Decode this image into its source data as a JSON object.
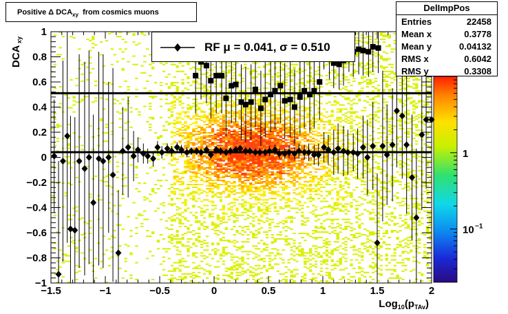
{
  "title": "Positive Δ DCA",
  "title_sub": "xy",
  "title_suffix": "from cosmics muons",
  "stats": {
    "name": "DelImpPos",
    "rows": [
      {
        "key": "Entries",
        "value": "22458"
      },
      {
        "key": "Mean x",
        "value": "0.3778"
      },
      {
        "key": "Mean y",
        "value": "0.04132"
      },
      {
        "key": "RMS x",
        "value": "0.6042"
      },
      {
        "key": "RMS y",
        "value": "0.3308"
      }
    ]
  },
  "legend": {
    "text": "RF μ =  0.041, σ =   0.510"
  },
  "colors": {
    "profile": "#000000",
    "fit_lines": "#000000"
  },
  "chart_data": {
    "type": "scatter",
    "xlabel": "Log",
    "xlabel_sub1": "10",
    "xlabel_mid": "(p",
    "xlabel_sub2": "TAv",
    "xlabel_end": ")",
    "ylabel": "DCA",
    "ylabel_sub": "xy",
    "xlim": [
      -1.5,
      2.0
    ],
    "ylim": [
      -1.0,
      1.0
    ],
    "x_ticks": [
      -1.5,
      -1.0,
      -0.5,
      0.0,
      0.5,
      1.0,
      1.5,
      2.0
    ],
    "x_tick_labels": [
      "−1.5",
      "−1",
      "−0.5",
      "0",
      "0.5",
      "1",
      "1.5",
      "2"
    ],
    "y_ticks": [
      -1.0,
      -0.8,
      -0.6,
      -0.4,
      -0.2,
      0.0,
      0.2,
      0.4,
      0.6,
      0.8,
      1.0
    ],
    "y_tick_labels": [
      "−1",
      "−0.8",
      "−0.6",
      "−0.4",
      "−0.2",
      "0",
      "0.2",
      "0.4",
      "0.6",
      "0.8",
      "1"
    ],
    "colorbar": {
      "scale": "log",
      "range": [
        0.02,
        10
      ],
      "tick_labels": [
        "1",
        "10"
      ],
      "tick_sup": "−1"
    },
    "fit_lines": [
      0.041,
      0.51
    ],
    "series": [
      {
        "marker": "diamond",
        "x": [
          -1.47,
          -1.43,
          -1.39,
          -1.35,
          -1.32,
          -1.28,
          -1.24,
          -1.19,
          -1.15,
          -1.11,
          -1.06,
          -1.02,
          -0.97,
          -0.93,
          -0.88,
          -0.84,
          -0.79,
          -0.74,
          -0.7,
          -0.65,
          -0.61,
          -0.56,
          -0.52,
          -0.48,
          -0.43,
          -0.39,
          -0.34,
          -0.3,
          -0.25,
          -0.21,
          -0.16,
          -0.12,
          -0.07,
          -0.03,
          0.02,
          0.06,
          0.11,
          0.15,
          0.2,
          0.24,
          0.29,
          0.33,
          0.38,
          0.42,
          0.47,
          0.51,
          0.56,
          0.6,
          0.65,
          0.69,
          0.74,
          0.78,
          0.83,
          0.87,
          0.92,
          0.96,
          1.01,
          1.05,
          1.1,
          1.14,
          1.19,
          1.23,
          1.28,
          1.32,
          1.37,
          1.41,
          1.46,
          1.5,
          1.55,
          1.59,
          1.64,
          1.68,
          1.73,
          1.77,
          1.82,
          1.86,
          1.91,
          1.95,
          2.0
        ],
        "y": [
          0.01,
          -0.93,
          -0.03,
          0.17,
          -0.57,
          -0.58,
          -0.03,
          -0.09,
          0.0,
          -0.36,
          -0.01,
          -0.03,
          0.0,
          -0.14,
          -0.76,
          0.05,
          0.08,
          0.01,
          0.06,
          0.03,
          0.01,
          -0.01,
          0.08,
          0.04,
          0.07,
          0.05,
          0.08,
          0.06,
          0.04,
          0.05,
          0.05,
          0.04,
          0.06,
          0.02,
          0.06,
          0.05,
          0.04,
          0.05,
          0.06,
          0.07,
          0.05,
          0.05,
          0.04,
          0.04,
          0.04,
          0.05,
          0.06,
          0.03,
          0.03,
          0.04,
          0.03,
          0.05,
          0.04,
          0.04,
          0.02,
          0.02,
          0.08,
          0.06,
          0.04,
          0.07,
          0.05,
          0.04,
          0.04,
          0.03,
          0.08,
          0.0,
          0.09,
          -0.68,
          0.09,
          0.02,
          0.1,
          0.37,
          0.33,
          0.1,
          -0.16,
          -0.48,
          0.18,
          0.3,
          0.3
        ],
        "err": [
          0.45,
          0.9,
          0.8,
          0.85,
          0.9,
          0.9,
          0.85,
          0.85,
          0.85,
          0.7,
          0.85,
          0.85,
          0.6,
          0.85,
          0.5,
          0.35,
          0.4,
          0.2,
          0.1,
          0.08,
          0.06,
          0.06,
          0.05,
          0.05,
          0.04,
          0.04,
          0.04,
          0.04,
          0.04,
          0.03,
          0.03,
          0.03,
          0.03,
          0.03,
          0.03,
          0.03,
          0.03,
          0.03,
          0.03,
          0.03,
          0.03,
          0.03,
          0.03,
          0.03,
          0.03,
          0.04,
          0.04,
          0.04,
          0.04,
          0.05,
          0.05,
          0.06,
          0.06,
          0.07,
          0.08,
          0.09,
          0.12,
          0.12,
          0.18,
          0.2,
          0.2,
          0.18,
          0.15,
          0.2,
          0.25,
          0.3,
          0.35,
          0.55,
          0.6,
          0.4,
          0.45,
          0.45,
          0.5,
          0.55,
          0.5,
          0.55,
          0.6,
          0.55,
          0.6
        ]
      },
      {
        "marker": "square",
        "x": [
          -0.17,
          -0.12,
          -0.07,
          -0.03,
          0.02,
          0.07,
          0.11,
          0.16,
          0.2,
          0.25,
          0.29,
          0.34,
          0.38,
          0.43,
          0.47,
          0.52,
          0.56,
          0.61,
          0.65,
          0.7,
          0.74,
          0.79,
          0.83,
          0.88,
          0.92,
          0.97,
          1.01,
          1.06,
          1.1,
          1.15,
          1.19,
          1.24,
          1.28,
          1.33,
          1.37,
          1.42,
          1.46,
          1.51
        ],
        "y": [
          0.65,
          0.76,
          0.73,
          0.61,
          0.65,
          0.65,
          0.47,
          0.57,
          0.58,
          0.44,
          0.42,
          0.44,
          0.54,
          0.39,
          0.46,
          0.5,
          0.53,
          0.57,
          0.45,
          0.46,
          0.4,
          0.48,
          0.53,
          0.5,
          0.53,
          0.6,
          0.9,
          0.82,
          0.75,
          0.74,
          0.77,
          0.88,
          0.84,
          0.86,
          0.85,
          0.84,
          0.88,
          0.87
        ],
        "err": [
          0.3,
          0.3,
          0.3,
          0.3,
          0.3,
          0.3,
          0.3,
          0.3,
          0.3,
          0.3,
          0.3,
          0.3,
          0.3,
          0.3,
          0.3,
          0.3,
          0.3,
          0.3,
          0.3,
          0.3,
          0.3,
          0.3,
          0.3,
          0.3,
          0.3,
          0.3,
          0.2,
          0.2,
          0.2,
          0.2,
          0.2,
          0.2,
          0.2,
          0.2,
          0.2,
          0.2,
          0.2,
          0.2
        ]
      }
    ]
  }
}
